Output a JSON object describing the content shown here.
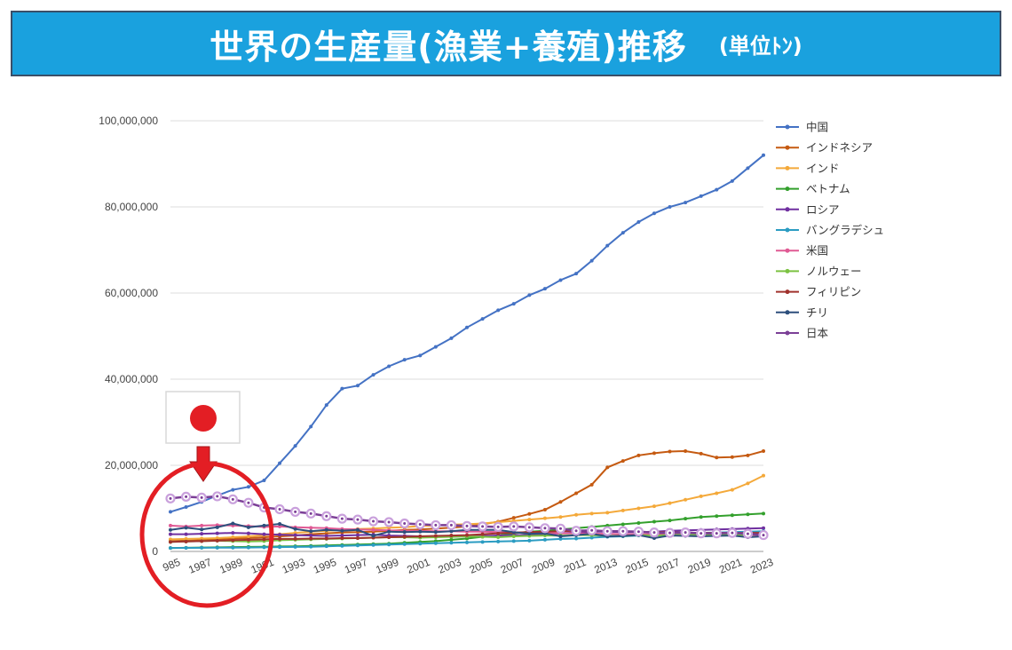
{
  "header": {
    "title": "世界の生産量(漁業+養殖)推移",
    "unit": "(単位ﾄﾝ)",
    "background_color": "#1aa1de"
  },
  "annotation": {
    "flag_icon": "japan-flag-icon",
    "arrow_icon": "arrow-down-icon",
    "highlight_color": "#e31e24"
  },
  "chart_data": {
    "type": "line",
    "x": [
      1985,
      1986,
      1987,
      1988,
      1989,
      1990,
      1991,
      1992,
      1993,
      1994,
      1995,
      1996,
      1997,
      1998,
      1999,
      2000,
      2001,
      2002,
      2003,
      2004,
      2005,
      2006,
      2007,
      2008,
      2009,
      2010,
      2011,
      2012,
      2013,
      2014,
      2015,
      2016,
      2017,
      2018,
      2019,
      2020,
      2021,
      2022,
      2023
    ],
    "x_tick_labels": [
      "985",
      "1987",
      "1989",
      "1991",
      "1993",
      "1995",
      "1997",
      "1999",
      "2001",
      "2003",
      "2005",
      "2007",
      "2009",
      "2011",
      "2013",
      "2015",
      "2017",
      "2019",
      "2021",
      "2023"
    ],
    "ylim": [
      0,
      100000000
    ],
    "y_ticks": [
      0,
      20000000,
      40000000,
      60000000,
      80000000,
      100000000
    ],
    "y_tick_labels": [
      "0",
      "20,000,000",
      "40,000,000",
      "60,000,000",
      "80,000,000",
      "100,000,000"
    ],
    "grid": true,
    "legend_position": "right",
    "series": [
      {
        "name": "中国",
        "color": "#4472c4",
        "values": [
          9200000,
          10300000,
          11500000,
          13000000,
          14300000,
          15000000,
          16500000,
          20500000,
          24500000,
          29000000,
          34000000,
          37800000,
          38500000,
          41000000,
          43000000,
          44500000,
          45500000,
          47500000,
          49500000,
          52000000,
          54000000,
          56000000,
          57500000,
          59500000,
          61000000,
          63000000,
          64500000,
          67500000,
          71000000,
          74000000,
          76500000,
          78500000,
          80000000,
          81000000,
          82500000,
          84000000,
          86000000,
          89000000,
          92000000
        ]
      },
      {
        "name": "インドネシア",
        "color": "#c55a11",
        "values": [
          2400000,
          2500000,
          2600000,
          2800000,
          3000000,
          3100000,
          3300000,
          3500000,
          3700000,
          4000000,
          4200000,
          4400000,
          4500000,
          4600000,
          4800000,
          5000000,
          5100000,
          5300000,
          5500000,
          5800000,
          6300000,
          6900000,
          7800000,
          8700000,
          9700000,
          11500000,
          13500000,
          15500000,
          19500000,
          21000000,
          22300000,
          22800000,
          23200000,
          23300000,
          22700000,
          21800000,
          21900000,
          22300000,
          23300000
        ]
      },
      {
        "name": "インド",
        "color": "#f4a93a",
        "values": [
          2800000,
          2900000,
          3000000,
          3100000,
          3300000,
          3500000,
          3800000,
          4000000,
          4300000,
          4600000,
          4800000,
          5000000,
          5200000,
          5300000,
          5500000,
          5600000,
          5900000,
          6000000,
          6200000,
          6300000,
          6500000,
          6800000,
          7100000,
          7400000,
          7700000,
          8000000,
          8500000,
          8800000,
          9000000,
          9500000,
          10000000,
          10500000,
          11200000,
          12000000,
          12800000,
          13500000,
          14300000,
          15800000,
          17600000
        ]
      },
      {
        "name": "ベトナム",
        "color": "#33a02c",
        "values": [
          800000,
          850000,
          900000,
          950000,
          1000000,
          1050000,
          1100000,
          1150000,
          1200000,
          1300000,
          1400000,
          1500000,
          1600000,
          1700000,
          1800000,
          2000000,
          2200000,
          2400000,
          2700000,
          3000000,
          3400000,
          3700000,
          4200000,
          4600000,
          4800000,
          5100000,
          5400000,
          5700000,
          6000000,
          6300000,
          6600000,
          6900000,
          7200000,
          7600000,
          8000000,
          8200000,
          8400000,
          8600000,
          8800000
        ]
      },
      {
        "name": "ロシア",
        "color": "#7030a0",
        "values": [
          4000000,
          4000000,
          4100000,
          4200000,
          4300000,
          4200000,
          4000000,
          3900000,
          3800000,
          3700000,
          3600000,
          3700000,
          3800000,
          3900000,
          3700000,
          3600000,
          3500000,
          3400000,
          3400000,
          3500000,
          3600000,
          3700000,
          3800000,
          3800000,
          4000000,
          4200000,
          4400000,
          4600000,
          4600000,
          4500000,
          4500000,
          4600000,
          4800000,
          4900000,
          5000000,
          5100000,
          5200000,
          5300000,
          5400000
        ]
      },
      {
        "name": "バングラデシュ",
        "color": "#2b9cc2",
        "values": [
          800000,
          820000,
          840000,
          860000,
          880000,
          900000,
          950000,
          1000000,
          1050000,
          1100000,
          1200000,
          1300000,
          1400000,
          1500000,
          1600000,
          1700000,
          1800000,
          1900000,
          2000000,
          2100000,
          2200000,
          2300000,
          2400000,
          2500000,
          2700000,
          2900000,
          3000000,
          3200000,
          3400000,
          3500000,
          3700000,
          3900000,
          4100000,
          4200000,
          4300000,
          4400000,
          4500000,
          4600000,
          4700000
        ]
      },
      {
        "name": "米国",
        "color": "#e05a94",
        "values": [
          6000000,
          5800000,
          6000000,
          6100000,
          6000000,
          5900000,
          5700000,
          5800000,
          5600000,
          5500000,
          5400000,
          5200000,
          5100000,
          5000000,
          4900000,
          4800000,
          4800000,
          4700000,
          4700000,
          4600000,
          4600000,
          4500000,
          4400000,
          4400000,
          4300000,
          4200000,
          4200000,
          4100000,
          4100000,
          4000000,
          4000000,
          4000000,
          4000000,
          4000000,
          4000000,
          3900000,
          3900000,
          3800000,
          3700000
        ]
      },
      {
        "name": "ノルウェー",
        "color": "#7cc242",
        "values": [
          2200000,
          2300000,
          2400000,
          2500000,
          2400000,
          2300000,
          2400000,
          2600000,
          2700000,
          2800000,
          2900000,
          3000000,
          3100000,
          3200000,
          3300000,
          3300000,
          3200000,
          3300000,
          3400000,
          3500000,
          3400000,
          3300000,
          3500000,
          3600000,
          3700000,
          3700000,
          3800000,
          3800000,
          3600000,
          3600000,
          3800000,
          3700000,
          3800000,
          3900000,
          3900000,
          3900000,
          3800000,
          3900000,
          3900000
        ]
      },
      {
        "name": "フィリピン",
        "color": "#a0322d",
        "values": [
          2200000,
          2300000,
          2400000,
          2500000,
          2600000,
          2700000,
          2800000,
          2900000,
          2900000,
          3000000,
          3000000,
          3100000,
          3100000,
          3200000,
          3300000,
          3400000,
          3500000,
          3600000,
          3700000,
          3800000,
          4000000,
          4200000,
          4400000,
          4500000,
          4600000,
          4700000,
          4800000,
          4800000,
          4700000,
          4700000,
          4600000,
          4500000,
          4500000,
          4400000,
          4300000,
          4300000,
          4300000,
          4300000,
          4300000
        ]
      },
      {
        "name": "チリ",
        "color": "#2d4f7c",
        "values": [
          5000000,
          5500000,
          5100000,
          5600000,
          6500000,
          5600000,
          6000000,
          6400000,
          5200000,
          4700000,
          5000000,
          4800000,
          5000000,
          3600000,
          4600000,
          4500000,
          4600000,
          4500000,
          4700000,
          5000000,
          5000000,
          5000000,
          4500000,
          4100000,
          4200000,
          3500000,
          3800000,
          4100000,
          3500000,
          3600000,
          3800000,
          3100000,
          3700000,
          3600000,
          3500000,
          3600000,
          3700000,
          3300000,
          3500000
        ]
      },
      {
        "name": "日本",
        "color": "#7b3f96",
        "values": [
          12300000,
          12700000,
          12500000,
          12800000,
          12100000,
          11300000,
          10200000,
          9800000,
          9200000,
          8800000,
          8200000,
          7600000,
          7400000,
          7000000,
          6800000,
          6500000,
          6300000,
          6100000,
          6100000,
          5900000,
          5800000,
          5700000,
          5800000,
          5600000,
          5400000,
          5300000,
          4800000,
          4900000,
          4700000,
          4700000,
          4600000,
          4400000,
          4300000,
          4400000,
          4200000,
          4200000,
          4300000,
          4100000,
          3800000
        ]
      }
    ]
  }
}
